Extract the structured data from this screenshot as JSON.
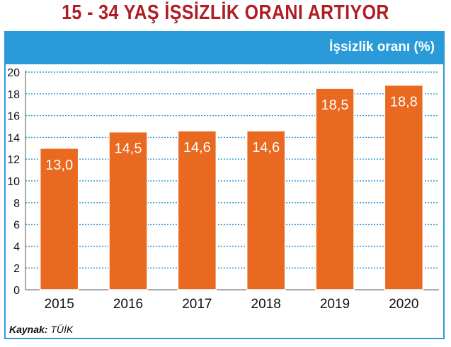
{
  "title": "15 - 34 YAŞ İŞSİZLİK ORANI ARTIYOR",
  "header_label": "İşsizlik oranı (%)",
  "source": {
    "label": "Kaynak:",
    "value": "TÜİK"
  },
  "colors": {
    "title": "#b01c24",
    "frame": "#2a9bd8",
    "bar": "#e8691f",
    "grid": "#2a9bd8"
  },
  "chart_data": {
    "type": "bar",
    "categories": [
      "2015",
      "2016",
      "2017",
      "2018",
      "2019",
      "2020"
    ],
    "values": [
      13.0,
      14.5,
      14.6,
      14.6,
      18.5,
      18.8
    ],
    "value_labels": [
      "13,0",
      "14,5",
      "14,6",
      "14,6",
      "18,5",
      "18,8"
    ],
    "ylim": [
      0,
      20
    ],
    "yticks": [
      0,
      2,
      4,
      6,
      8,
      10,
      12,
      14,
      16,
      18,
      20
    ],
    "grid": true,
    "xlabel": "",
    "ylabel": ""
  }
}
